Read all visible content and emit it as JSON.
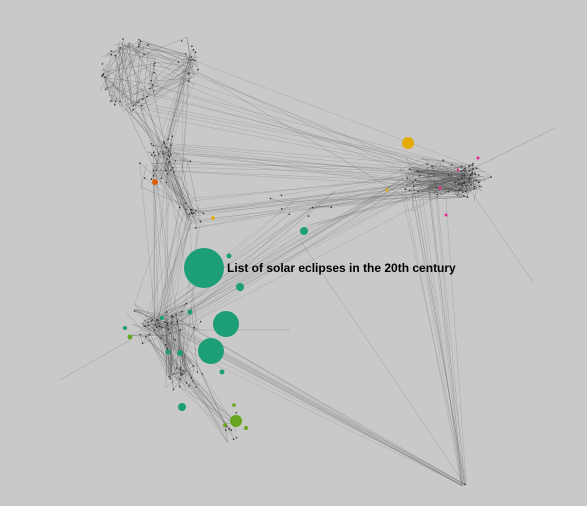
{
  "graph": {
    "background_color": "#c9c9c9",
    "edge_color": "#555555",
    "highlighted_label": "List of solar eclipses in the 20th century",
    "node_colors": {
      "teal": "#1c9e77",
      "green": "#66a61e",
      "orange": "#d95f02",
      "yellow": "#e6ab02",
      "pink": "#e7298a"
    }
  }
}
